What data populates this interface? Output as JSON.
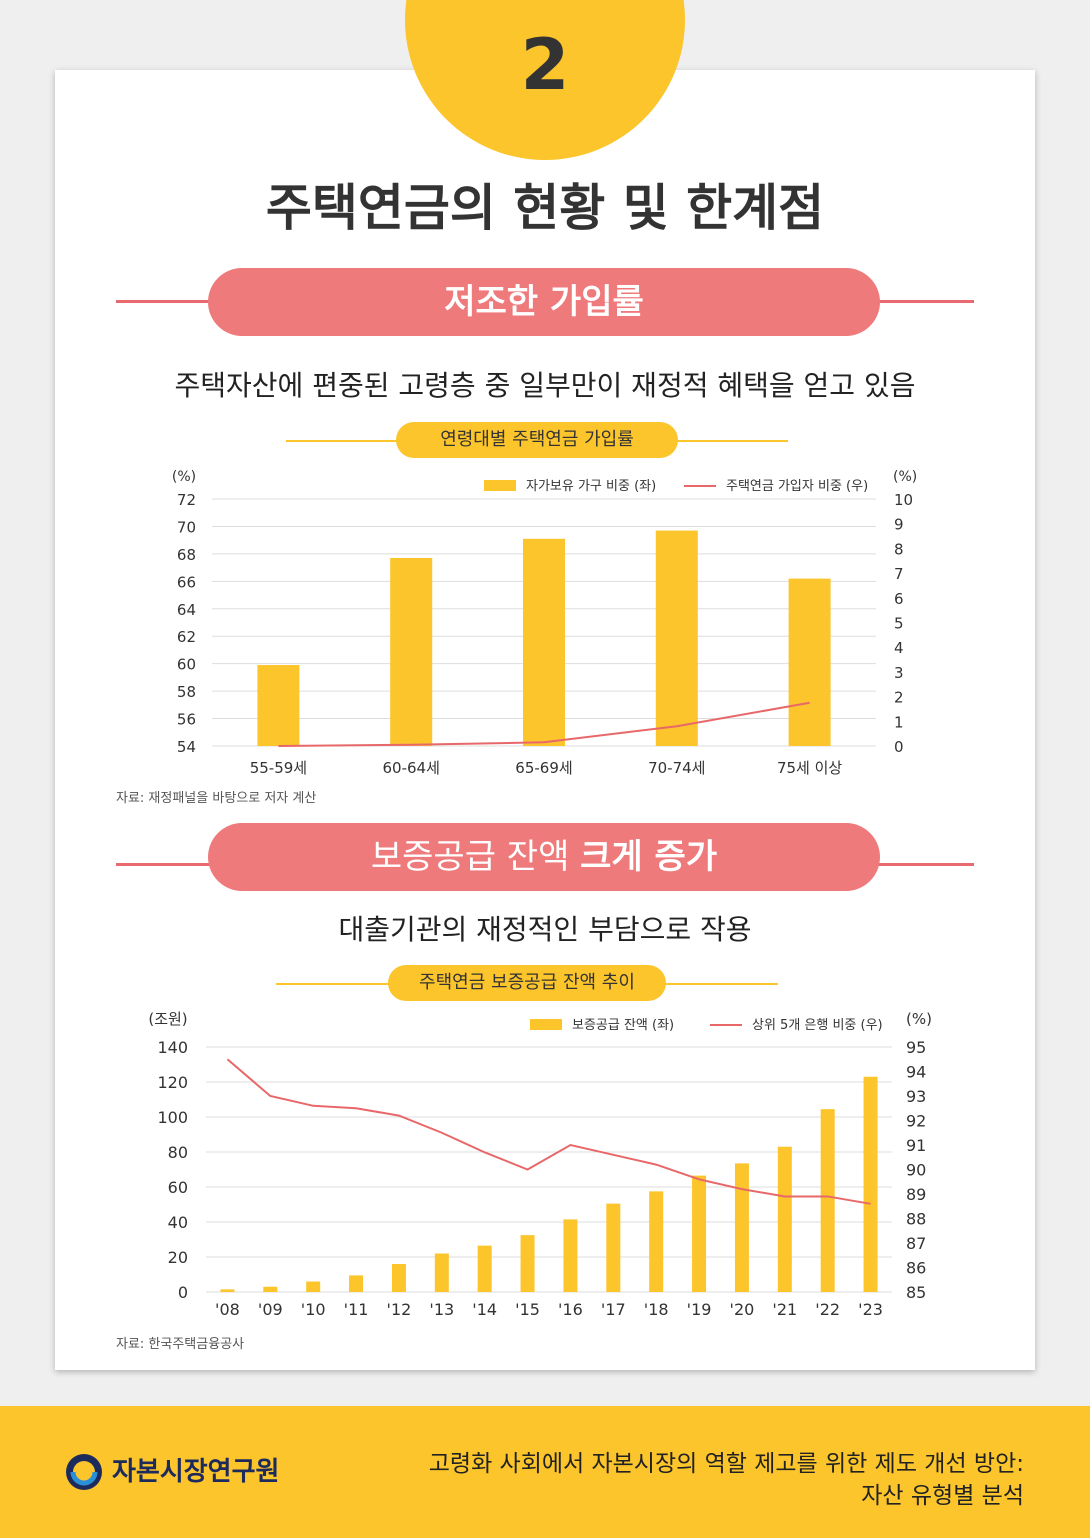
{
  "badge": {
    "number": "2"
  },
  "title": "주택연금의 현황 및 한계점",
  "section1": {
    "pill_label": "저조한 가입률",
    "subtitle": "주택자산에 편중된 고령층 중 일부만이 재정적 혜택을 얻고 있음",
    "source": "자료: 재정패널을 바탕으로 저자 계산"
  },
  "section2": {
    "pill_label_light": "보증공급 잔액 ",
    "pill_label_bold": "크게 증가",
    "subtitle": "대출기관의 재정적인 부담으로 작용",
    "source": "자료: 한국주택금융공사"
  },
  "colors": {
    "bar": "#fcc52c",
    "line": "#e8686a",
    "pill": "#ef7a7c",
    "grid": "#dddddd"
  },
  "chart_data": [
    {
      "type": "bar",
      "title": "연령대별 주택연금 가입률",
      "left_unit": "(%)",
      "right_unit": "(%)",
      "categories": [
        "55-59세",
        "60-64세",
        "65-69세",
        "70-74세",
        "75세 이상"
      ],
      "ylim_left": [
        54,
        72
      ],
      "ylim_right": [
        0,
        10
      ],
      "yticks_left": [
        54,
        56,
        58,
        60,
        62,
        64,
        66,
        68,
        70,
        72
      ],
      "yticks_right": [
        0,
        1,
        2,
        3,
        4,
        5,
        6,
        7,
        8,
        9,
        10
      ],
      "series": [
        {
          "name": "자가보유 가구 비중 (좌)",
          "type": "bar",
          "axis": "left",
          "values": [
            59.9,
            67.7,
            69.1,
            69.7,
            66.2
          ]
        },
        {
          "name": "주택연금 가입자 비중 (우)",
          "type": "line",
          "axis": "right",
          "values": [
            0.0,
            0.05,
            0.15,
            0.8,
            1.75
          ]
        }
      ],
      "grid": true,
      "legend": "top-right"
    },
    {
      "type": "bar",
      "title": "주택연금 보증공급 잔액 추이",
      "left_unit": "(조원)",
      "right_unit": "(%)",
      "categories": [
        "'08",
        "'09",
        "'10",
        "'11",
        "'12",
        "'13",
        "'14",
        "'15",
        "'16",
        "'17",
        "'18",
        "'19",
        "'20",
        "'21",
        "'22",
        "'23"
      ],
      "ylim_left": [
        0,
        140
      ],
      "ylim_right": [
        85,
        95
      ],
      "yticks_left": [
        0,
        20,
        40,
        60,
        80,
        100,
        120,
        140
      ],
      "yticks_right": [
        85,
        86,
        87,
        88,
        89,
        90,
        91,
        92,
        93,
        94,
        95
      ],
      "series": [
        {
          "name": "보증공급 잔액 (좌)",
          "type": "bar",
          "axis": "left",
          "values": [
            1.5,
            3.0,
            6.0,
            9.5,
            16.0,
            22.0,
            26.5,
            32.5,
            41.5,
            50.5,
            57.5,
            66.5,
            73.5,
            83.0,
            104.5,
            123.0
          ]
        },
        {
          "name": "상위 5개 은행 비중 (우)",
          "type": "line",
          "axis": "right",
          "values": [
            94.5,
            93.0,
            92.6,
            92.5,
            92.2,
            91.5,
            90.7,
            90.0,
            91.0,
            90.6,
            90.2,
            89.6,
            89.2,
            88.9,
            88.9,
            88.6
          ]
        }
      ],
      "grid": true,
      "legend": "top-right"
    }
  ],
  "footer": {
    "logo_text": "자본시장연구원",
    "line1": "고령화 사회에서 자본시장의 역할  제고를 위한 제도 개선 방안:",
    "line2": "자산 유형별 분석"
  }
}
